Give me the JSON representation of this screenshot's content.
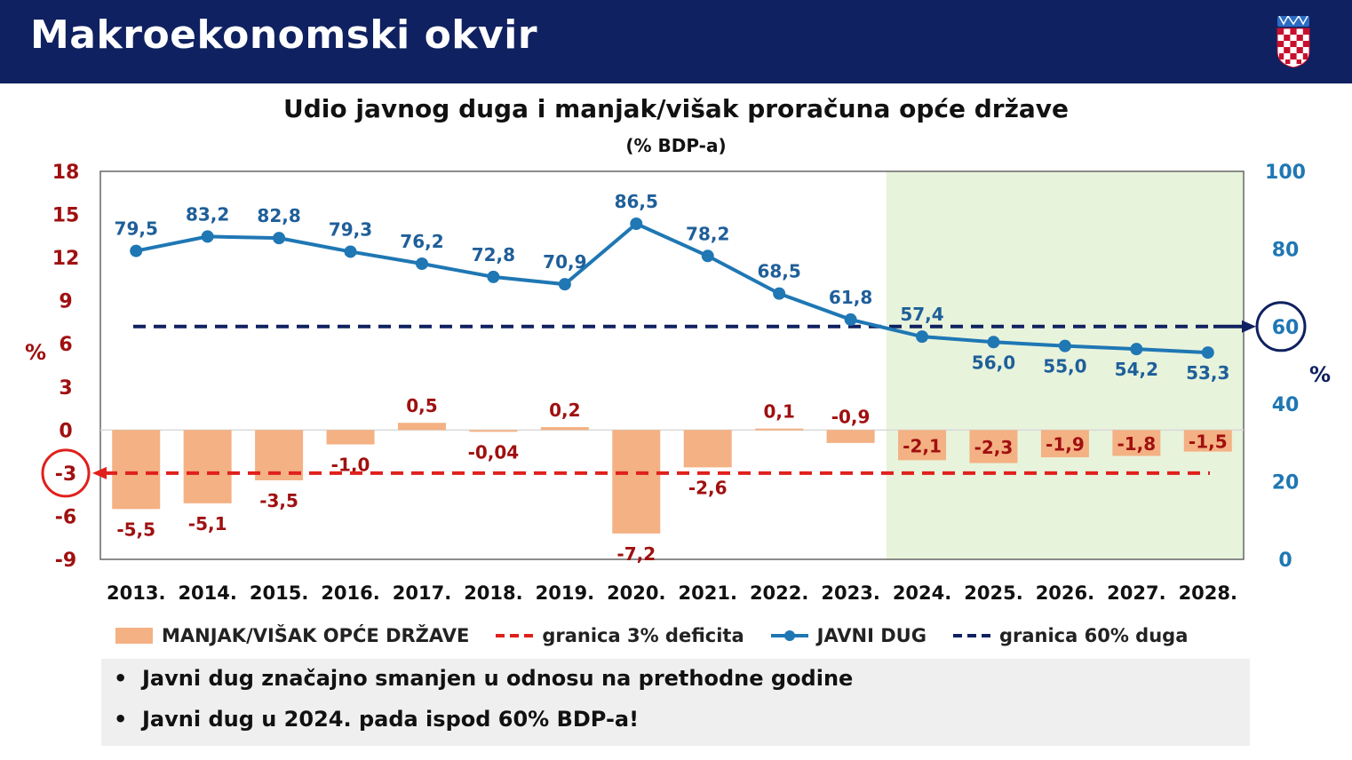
{
  "header": {
    "title": "Makroekonomski okvir",
    "coat_icon": "croatian-coat-of-arms-icon"
  },
  "chart_data": {
    "type": "bar+line",
    "title": "Udio javnog duga i manjak/višak proračuna opće države",
    "subtitle": "(% BDP-a)",
    "categories": [
      "2013.",
      "2014.",
      "2015.",
      "2016.",
      "2017.",
      "2018.",
      "2019.",
      "2020.",
      "2021.",
      "2022.",
      "2023.",
      "2024.",
      "2025.",
      "2026.",
      "2027.",
      "2028."
    ],
    "series": [
      {
        "name": "MANJAK/VIŠAK OPĆE DRŽAVE",
        "kind": "bar",
        "axis": "left",
        "values": [
          -5.5,
          -5.1,
          -3.5,
          -1.0,
          0.5,
          -0.04,
          0.2,
          -7.2,
          -2.6,
          0.1,
          -0.9,
          -2.1,
          -2.3,
          -1.9,
          -1.8,
          -1.5
        ],
        "labels": [
          "-5,5",
          "-5,1",
          "-3,5",
          "-1,0",
          "0,5",
          "-0,04",
          "0,2",
          "-7,2",
          "-2,6",
          "0,1",
          "-0,9",
          "-2,1",
          "-2,3",
          "-1,9",
          "-1,8",
          "-1,5"
        ],
        "color": "#f4b183",
        "label_color": "#a01010"
      },
      {
        "name": "JAVNI DUG",
        "kind": "line",
        "axis": "right",
        "values": [
          79.5,
          83.2,
          82.8,
          79.3,
          76.2,
          72.8,
          70.9,
          86.5,
          78.2,
          68.5,
          61.8,
          57.4,
          56.0,
          55.0,
          54.2,
          53.3
        ],
        "labels": [
          "79,5",
          "83,2",
          "82,8",
          "79,3",
          "76,2",
          "72,8",
          "70,9",
          "86,5",
          "78,2",
          "68,5",
          "61,8",
          "57,4",
          "56,0",
          "55,0",
          "54,2",
          "53,3"
        ],
        "color": "#1f77b4",
        "label_color": "#1f5f99"
      }
    ],
    "reference_lines": [
      {
        "name": "granica 3% deficita",
        "axis": "left",
        "value": -3,
        "color": "#e0201c"
      },
      {
        "name": "granica 60% duga",
        "axis": "right",
        "value": 60,
        "color": "#0f2160"
      }
    ],
    "y_left": {
      "min": -9,
      "max": 18,
      "ticks": [
        18,
        15,
        12,
        9,
        6,
        3,
        0,
        -3,
        -6,
        -9
      ],
      "label": "%",
      "color": "#a01010",
      "highlight_tick": -3
    },
    "y_right": {
      "min": 0,
      "max": 100,
      "ticks": [
        100,
        80,
        60,
        40,
        20,
        0
      ],
      "label": "%",
      "color": "#1f77b4",
      "highlight_tick": 60
    },
    "forecast_shading": {
      "from": "2024.",
      "to": "2028.",
      "color": "#e8f3dc"
    },
    "legend_position": "bottom"
  },
  "legend": {
    "bars": "MANJAK/VIŠAK OPĆE DRŽAVE",
    "deficit_line": "granica 3% deficita",
    "debt_line": "JAVNI DUG",
    "debt_limit": "granica 60% duga"
  },
  "notes": {
    "bullet": "•",
    "items": [
      "Javni dug značajno smanjen u odnosu na prethodne godine",
      "Javni dug u 2024. pada ispod 60% BDP-a!"
    ]
  }
}
